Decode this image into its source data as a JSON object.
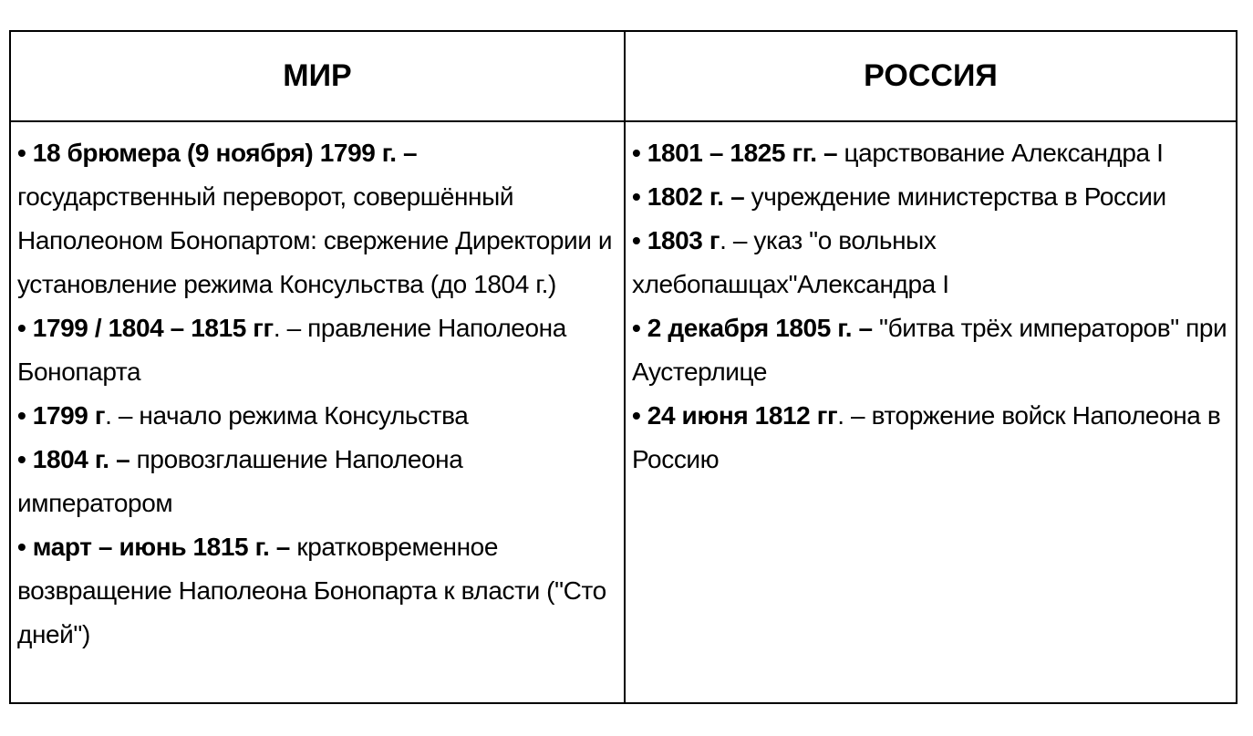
{
  "headers": [
    "МИР",
    "РОССИЯ"
  ],
  "world": [
    {
      "bold": "• 18 брюмера (9 ноября) 1799 г. –",
      "text": " государственный переворот, совершённый Наполеоном Бонопартом: свержение Директории и установление режима Консульства (до 1804 г.)"
    },
    {
      "bold": "• 1799 / 1804 – 1815 гг",
      "text": ". –  правление Наполеона Бонопарта"
    },
    {
      "bold": "• 1799 г",
      "text": ". – начало режима Консульства"
    },
    {
      "bold": "• 1804 г. –",
      "text": " провозглашение Наполеона императором"
    },
    {
      "bold": "• март – июнь 1815 г. –",
      "text": " кратковременное возвращение Наполеона Бонопарта к власти (\"Сто дней\")"
    }
  ],
  "russia": [
    {
      "bold": "• 1801 – 1825 гг.  –",
      "text": " царствование Александра I"
    },
    {
      "bold": "• 1802 г. –",
      "text": " учреждение министерства в России"
    },
    {
      "bold": "•  1803 г",
      "text": ". – указ \"о вольных хлебопашцах\"Александра I"
    },
    {
      "bold": "• 2 декабря 1805 г. –",
      "text": "  \"битва трёх императоров\" при Аустерлице"
    },
    {
      "bold": "• 24 июня 1812 гг",
      "text": ". – вторжение войск Наполеона в Россию"
    }
  ]
}
